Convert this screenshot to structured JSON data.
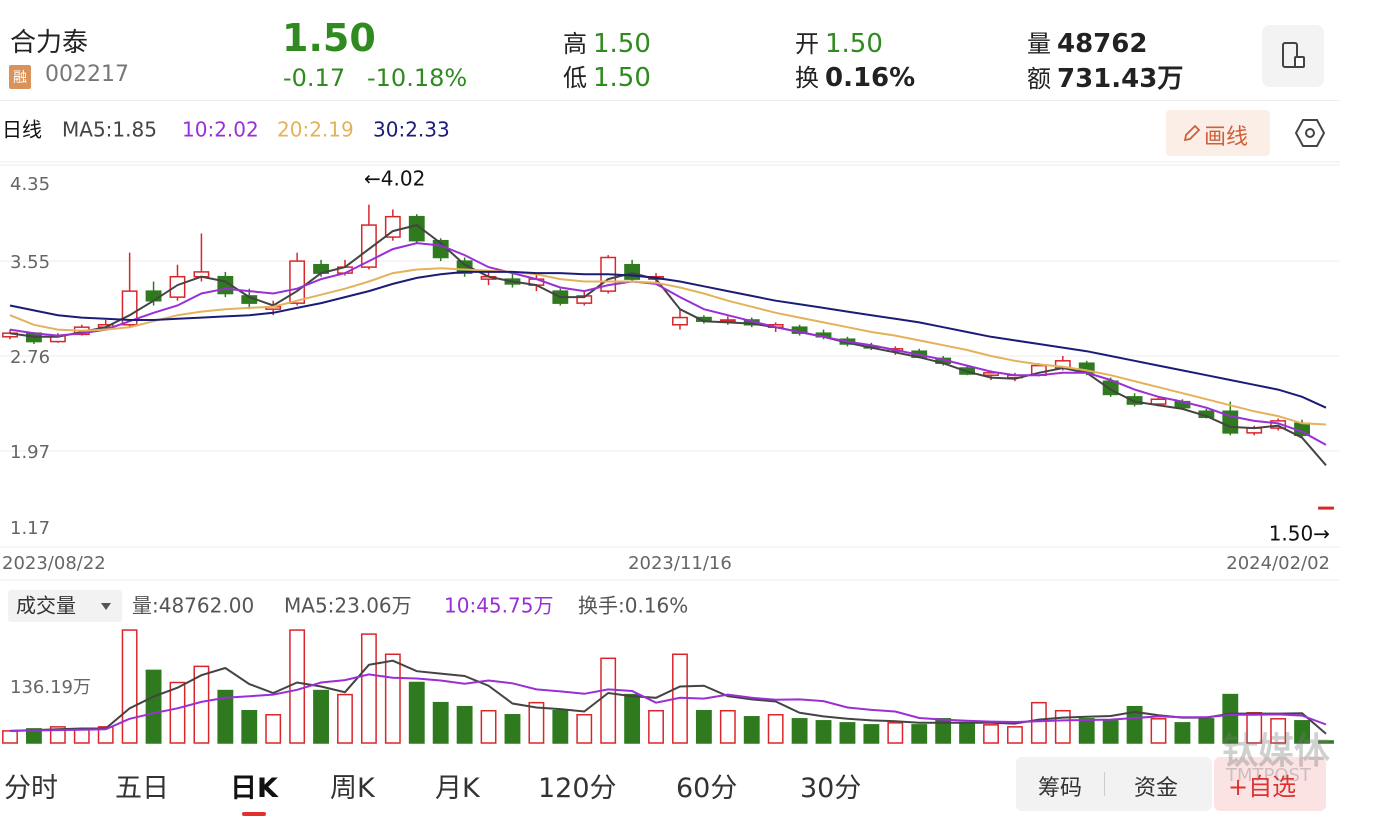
{
  "header": {
    "name": "合力泰",
    "badge": "融",
    "code": "002217",
    "price": "1.50",
    "change": "-0.17",
    "change_pct": "-10.18%",
    "stats": [
      {
        "label": "高",
        "value": "1.50"
      },
      {
        "label": "低",
        "value": "1.50"
      },
      {
        "label": "开",
        "value": "1.50"
      },
      {
        "label": "换",
        "value": "0.16%"
      },
      {
        "label": "量",
        "value": "48762"
      },
      {
        "label": "额",
        "value": "731.43万"
      }
    ]
  },
  "draw_button": "画线",
  "chart_data": [
    {
      "type": "candlestick",
      "legend_title": "日线",
      "up_color": "#d9262b",
      "down_color": "#2f7a1f",
      "categories": [
        "2023/08/22",
        null,
        null,
        null,
        null,
        null,
        null,
        null,
        null,
        null,
        null,
        null,
        null,
        null,
        null,
        null,
        null,
        null,
        null,
        null,
        null,
        null,
        null,
        null,
        null,
        null,
        null,
        null,
        "2023/11/16",
        null,
        null,
        null,
        null,
        null,
        null,
        null,
        null,
        null,
        null,
        null,
        null,
        null,
        null,
        null,
        null,
        null,
        null,
        null,
        null,
        null,
        null,
        null,
        null,
        null,
        null,
        "2024/02/02"
      ],
      "candles": [
        [
          2.92,
          2.98,
          2.9,
          2.95
        ],
        [
          2.95,
          2.96,
          2.86,
          2.88
        ],
        [
          2.88,
          2.95,
          2.87,
          2.93
        ],
        [
          2.94,
          3.02,
          2.93,
          3.0
        ],
        [
          3.0,
          3.06,
          2.97,
          3.02
        ],
        [
          3.02,
          3.62,
          3.0,
          3.3
        ],
        [
          3.3,
          3.38,
          3.18,
          3.22
        ],
        [
          3.25,
          3.52,
          3.22,
          3.42
        ],
        [
          3.42,
          3.78,
          3.38,
          3.46
        ],
        [
          3.42,
          3.46,
          3.25,
          3.28
        ],
        [
          3.26,
          3.32,
          3.15,
          3.2
        ],
        [
          3.15,
          3.22,
          3.1,
          3.17
        ],
        [
          3.2,
          3.62,
          3.18,
          3.55
        ],
        [
          3.52,
          3.56,
          3.42,
          3.45
        ],
        [
          3.45,
          3.56,
          3.43,
          3.5
        ],
        [
          3.5,
          4.02,
          3.48,
          3.85
        ],
        [
          3.75,
          3.98,
          3.72,
          3.92
        ],
        [
          3.92,
          3.94,
          3.7,
          3.72
        ],
        [
          3.72,
          3.74,
          3.55,
          3.58
        ],
        [
          3.55,
          3.58,
          3.42,
          3.45
        ],
        [
          3.4,
          3.46,
          3.35,
          3.42
        ],
        [
          3.4,
          3.45,
          3.33,
          3.36
        ],
        [
          3.35,
          3.44,
          3.3,
          3.4
        ],
        [
          3.3,
          3.32,
          3.18,
          3.2
        ],
        [
          3.2,
          3.3,
          3.18,
          3.26
        ],
        [
          3.3,
          3.6,
          3.28,
          3.58
        ],
        [
          3.52,
          3.56,
          3.38,
          3.4
        ],
        [
          3.4,
          3.45,
          3.36,
          3.42
        ],
        [
          3.02,
          3.15,
          2.98,
          3.08
        ],
        [
          3.08,
          3.1,
          3.03,
          3.05
        ],
        [
          3.05,
          3.09,
          3.02,
          3.06
        ],
        [
          3.06,
          3.08,
          3.0,
          3.02
        ],
        [
          3.0,
          3.04,
          2.96,
          3.02
        ],
        [
          3.0,
          3.02,
          2.93,
          2.95
        ],
        [
          2.95,
          2.98,
          2.9,
          2.92
        ],
        [
          2.9,
          2.92,
          2.84,
          2.86
        ],
        [
          2.84,
          2.87,
          2.81,
          2.83
        ],
        [
          2.8,
          2.84,
          2.77,
          2.82
        ],
        [
          2.8,
          2.82,
          2.74,
          2.75
        ],
        [
          2.74,
          2.76,
          2.68,
          2.7
        ],
        [
          2.66,
          2.68,
          2.6,
          2.61
        ],
        [
          2.6,
          2.64,
          2.56,
          2.62
        ],
        [
          2.58,
          2.62,
          2.55,
          2.6
        ],
        [
          2.6,
          2.7,
          2.59,
          2.68
        ],
        [
          2.66,
          2.76,
          2.64,
          2.72
        ],
        [
          2.7,
          2.72,
          2.6,
          2.62
        ],
        [
          2.55,
          2.58,
          2.42,
          2.44
        ],
        [
          2.42,
          2.45,
          2.34,
          2.36
        ],
        [
          2.36,
          2.42,
          2.34,
          2.4
        ],
        [
          2.38,
          2.4,
          2.32,
          2.33
        ],
        [
          2.3,
          2.32,
          2.24,
          2.25
        ],
        [
          2.3,
          2.38,
          2.1,
          2.12
        ],
        [
          2.12,
          2.18,
          2.1,
          2.16
        ],
        [
          2.16,
          2.24,
          2.14,
          2.22
        ],
        [
          2.2,
          2.23,
          2.08,
          2.1
        ],
        [
          1.5,
          1.5,
          1.5,
          1.5
        ]
      ],
      "series": [
        {
          "name": "MA5:1.85",
          "color": "#444444",
          "values": [
            2.95,
            2.92,
            2.92,
            2.96,
            3.0,
            3.1,
            3.22,
            3.35,
            3.42,
            3.38,
            3.25,
            3.18,
            3.3,
            3.45,
            3.5,
            3.65,
            3.8,
            3.85,
            3.7,
            3.52,
            3.42,
            3.38,
            3.35,
            3.25,
            3.25,
            3.4,
            3.45,
            3.4,
            3.15,
            3.05,
            3.04,
            3.03,
            3.0,
            2.96,
            2.92,
            2.87,
            2.83,
            2.79,
            2.75,
            2.7,
            2.63,
            2.58,
            2.57,
            2.62,
            2.66,
            2.62,
            2.48,
            2.38,
            2.35,
            2.32,
            2.26,
            2.17,
            2.16,
            2.18,
            2.08,
            1.85
          ]
        },
        {
          "name": "10:2.02",
          "color": "#9a2fd6",
          "values": [
            2.98,
            2.95,
            2.93,
            2.95,
            2.98,
            3.05,
            3.12,
            3.18,
            3.28,
            3.32,
            3.3,
            3.28,
            3.32,
            3.4,
            3.45,
            3.55,
            3.65,
            3.7,
            3.68,
            3.6,
            3.5,
            3.45,
            3.4,
            3.33,
            3.3,
            3.35,
            3.38,
            3.36,
            3.25,
            3.15,
            3.1,
            3.05,
            3.0,
            2.96,
            2.92,
            2.88,
            2.85,
            2.81,
            2.77,
            2.73,
            2.68,
            2.63,
            2.6,
            2.6,
            2.62,
            2.62,
            2.56,
            2.48,
            2.42,
            2.38,
            2.33,
            2.26,
            2.22,
            2.2,
            2.13,
            2.02
          ]
        },
        {
          "name": "20:2.19",
          "color": "#e3b25a",
          "values": [
            3.1,
            3.02,
            2.98,
            2.97,
            2.98,
            3.0,
            3.05,
            3.1,
            3.13,
            3.15,
            3.16,
            3.17,
            3.22,
            3.27,
            3.32,
            3.38,
            3.45,
            3.48,
            3.49,
            3.48,
            3.47,
            3.46,
            3.44,
            3.4,
            3.38,
            3.38,
            3.38,
            3.37,
            3.33,
            3.28,
            3.22,
            3.17,
            3.12,
            3.08,
            3.04,
            3.0,
            2.96,
            2.93,
            2.89,
            2.85,
            2.81,
            2.76,
            2.72,
            2.69,
            2.67,
            2.64,
            2.6,
            2.55,
            2.5,
            2.45,
            2.4,
            2.35,
            2.3,
            2.26,
            2.2,
            2.19
          ]
        },
        {
          "name": "30:2.33",
          "color": "#1c1c78",
          "values": [
            3.18,
            3.14,
            3.1,
            3.08,
            3.07,
            3.06,
            3.06,
            3.07,
            3.08,
            3.09,
            3.1,
            3.12,
            3.16,
            3.2,
            3.25,
            3.3,
            3.36,
            3.41,
            3.44,
            3.46,
            3.46,
            3.46,
            3.45,
            3.45,
            3.44,
            3.44,
            3.43,
            3.41,
            3.38,
            3.34,
            3.3,
            3.26,
            3.22,
            3.19,
            3.16,
            3.13,
            3.1,
            3.07,
            3.04,
            3.0,
            2.96,
            2.92,
            2.89,
            2.86,
            2.83,
            2.8,
            2.76,
            2.72,
            2.68,
            2.64,
            2.6,
            2.56,
            2.52,
            2.48,
            2.42,
            2.33
          ]
        }
      ],
      "ylim": [
        1.17,
        4.35
      ],
      "yticks": [
        4.35,
        3.55,
        2.76,
        1.97,
        1.17
      ],
      "grid": true,
      "annotations": [
        "←4.02",
        "1.50→"
      ]
    },
    {
      "type": "bar",
      "title": "成交量",
      "legend": [
        "量:48762.00",
        "换手:0.16%"
      ],
      "values": [
        30,
        35,
        40,
        35,
        40,
        280,
        180,
        150,
        190,
        130,
        80,
        70,
        280,
        130,
        120,
        270,
        220,
        150,
        100,
        90,
        80,
        70,
        100,
        80,
        70,
        210,
        120,
        80,
        220,
        80,
        80,
        65,
        70,
        60,
        55,
        50,
        45,
        50,
        45,
        60,
        50,
        45,
        40,
        100,
        80,
        60,
        55,
        90,
        60,
        50,
        60,
        120,
        75,
        60,
        55,
        5
      ],
      "series": [
        {
          "name": "MA5:23.06万",
          "color": "#444444",
          "values": [
            30,
            32,
            34,
            36,
            36,
            86,
            115,
            137,
            168,
            186,
            146,
            124,
            150,
            140,
            126,
            194,
            204,
            178,
            172,
            166,
            142,
            98,
            88,
            84,
            78,
            124,
            116,
            112,
            140,
            142,
            116,
            108,
            103,
            75,
            66,
            60,
            56,
            54,
            50,
            50,
            50,
            50,
            48,
            58,
            63,
            65,
            67,
            77,
            69,
            63,
            63,
            73,
            73,
            73,
            74,
            23.06
          ]
        },
        {
          "name": "10:45.75万",
          "color": "#9a2fd6",
          "values": [
            30,
            31,
            32,
            33,
            34,
            60,
            74,
            86,
            102,
            112,
            116,
            120,
            132,
            150,
            156,
            170,
            162,
            160,
            155,
            147,
            155,
            148,
            133,
            128,
            122,
            133,
            129,
            100,
            112,
            110,
            120,
            112,
            107,
            108,
            104,
            88,
            82,
            78,
            62,
            58,
            55,
            53,
            52,
            54,
            56,
            57,
            58,
            62,
            66,
            64,
            64,
            70,
            70,
            71,
            68,
            45.75
          ]
        }
      ],
      "ylim": [
        0,
        300
      ],
      "yticks": [
        {
          "value": 136.19,
          "label": "136.19万"
        }
      ]
    }
  ],
  "tabs": [
    "分时",
    "五日",
    "日K",
    "周K",
    "月K",
    "120分",
    "60分",
    "30分"
  ],
  "buttons": [
    "筹码",
    "资金",
    "+自选"
  ],
  "watermark": [
    "钛媒体",
    "TMTPOST"
  ]
}
